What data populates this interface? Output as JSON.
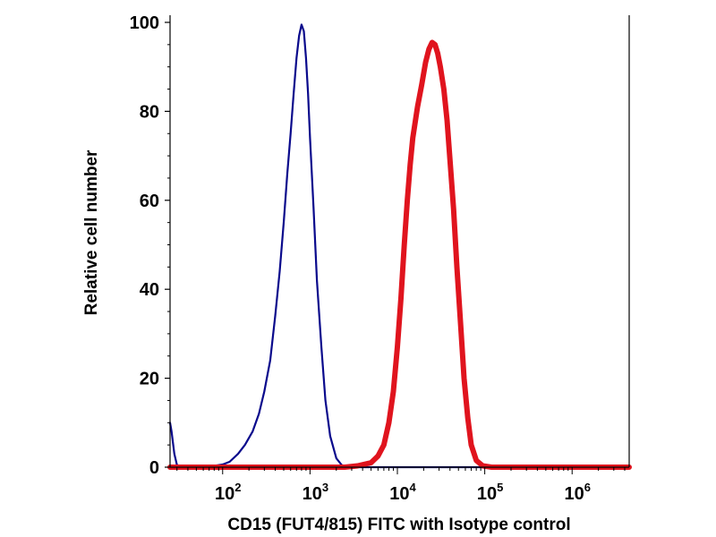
{
  "chart_data": {
    "type": "line",
    "title": "",
    "xlabel": "CD15 (FUT4/815) FITC with Isotype control",
    "ylabel": "Relative cell number",
    "x_scale": "log",
    "xlim": [
      25,
      4500000
    ],
    "ylim": [
      0,
      100
    ],
    "x_ticks": [
      {
        "value": 100,
        "base": "10",
        "exp": "2"
      },
      {
        "value": 1000,
        "base": "10",
        "exp": "3"
      },
      {
        "value": 10000,
        "base": "10",
        "exp": "4"
      },
      {
        "value": 100000,
        "base": "10",
        "exp": "5"
      },
      {
        "value": 1000000,
        "base": "10",
        "exp": "6"
      }
    ],
    "y_ticks": [
      0,
      20,
      40,
      60,
      80,
      100
    ],
    "grid": false,
    "legend": "none",
    "series": [
      {
        "color": "#0a0a8c",
        "points": [
          [
            25,
            10
          ],
          [
            26,
            8
          ],
          [
            28,
            3
          ],
          [
            30,
            0.5
          ],
          [
            35,
            0
          ],
          [
            60,
            0
          ],
          [
            80,
            0.3
          ],
          [
            100,
            0.6
          ],
          [
            120,
            1.2
          ],
          [
            150,
            3
          ],
          [
            180,
            5
          ],
          [
            220,
            8
          ],
          [
            260,
            12
          ],
          [
            300,
            17
          ],
          [
            350,
            24
          ],
          [
            400,
            34
          ],
          [
            450,
            44
          ],
          [
            500,
            55
          ],
          [
            550,
            66
          ],
          [
            600,
            75
          ],
          [
            650,
            84
          ],
          [
            700,
            92
          ],
          [
            750,
            97
          ],
          [
            800,
            99.5
          ],
          [
            850,
            98
          ],
          [
            900,
            92
          ],
          [
            950,
            84
          ],
          [
            1000,
            74
          ],
          [
            1100,
            58
          ],
          [
            1200,
            42
          ],
          [
            1350,
            27
          ],
          [
            1500,
            15
          ],
          [
            1700,
            7
          ],
          [
            2000,
            2
          ],
          [
            2300,
            0.5
          ],
          [
            2700,
            0
          ],
          [
            4500000,
            0
          ]
        ]
      },
      {
        "color": "#e0141e",
        "points": [
          [
            25,
            0
          ],
          [
            2500,
            0
          ],
          [
            3500,
            0.3
          ],
          [
            5000,
            1
          ],
          [
            6000,
            2.5
          ],
          [
            7000,
            5
          ],
          [
            8000,
            10
          ],
          [
            9000,
            17
          ],
          [
            10000,
            27
          ],
          [
            11000,
            38
          ],
          [
            12000,
            50
          ],
          [
            13000,
            60
          ],
          [
            14000,
            68
          ],
          [
            15000,
            74
          ],
          [
            17000,
            81
          ],
          [
            19000,
            86
          ],
          [
            21000,
            91
          ],
          [
            23000,
            94
          ],
          [
            25000,
            95.5
          ],
          [
            27000,
            95
          ],
          [
            29000,
            93
          ],
          [
            31000,
            90
          ],
          [
            34000,
            85
          ],
          [
            37000,
            78
          ],
          [
            40000,
            69
          ],
          [
            44000,
            58
          ],
          [
            48000,
            45
          ],
          [
            53000,
            32
          ],
          [
            58000,
            20
          ],
          [
            64000,
            11
          ],
          [
            70000,
            5
          ],
          [
            80000,
            1.5
          ],
          [
            95000,
            0.3
          ],
          [
            120000,
            0
          ],
          [
            4500000,
            0
          ]
        ]
      }
    ]
  }
}
